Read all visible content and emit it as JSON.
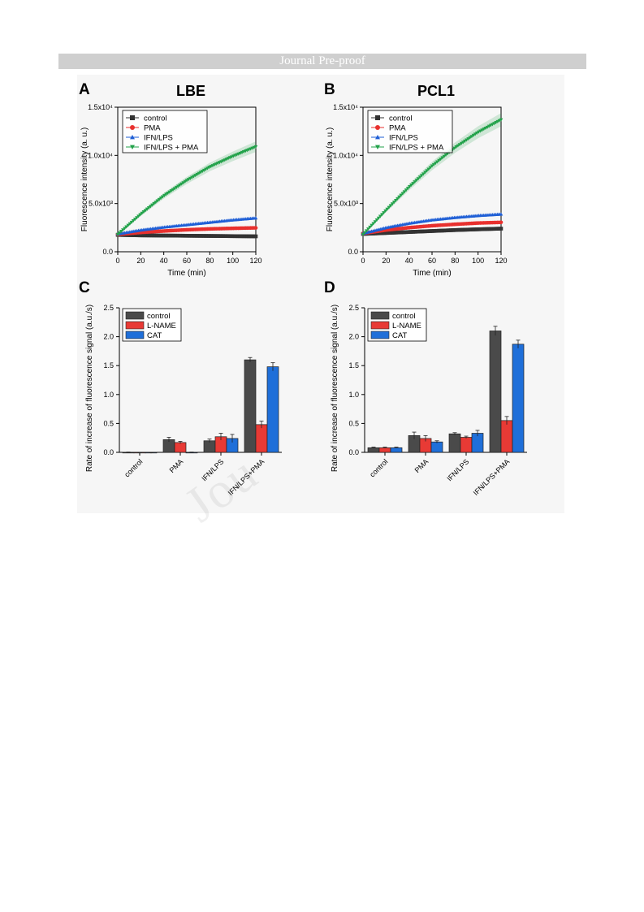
{
  "banner": "Journal Pre-proof",
  "watermark": "Jou",
  "chart_data": [
    {
      "type": "line",
      "panel": "A",
      "title": "LBE",
      "xlabel": "Time (min)",
      "ylabel": "Fluorescence intensity (a. u.)",
      "xlim": [
        0,
        120
      ],
      "ylim": [
        0,
        15000
      ],
      "xticks": [
        0,
        20,
        40,
        60,
        80,
        100,
        120
      ],
      "yticks": [
        0,
        5000,
        10000,
        15000
      ],
      "ytick_labels": [
        "0.0",
        "5.0x10³",
        "1.0x10⁴",
        "1.5x10⁴"
      ],
      "legend_position": "top-left",
      "series": [
        {
          "name": "control",
          "color": "#333333",
          "marker": "square",
          "x": [
            0,
            20,
            40,
            60,
            80,
            100,
            120
          ],
          "y": [
            1750,
            1700,
            1680,
            1660,
            1640,
            1620,
            1600
          ]
        },
        {
          "name": "PMA",
          "color": "#e8302e",
          "marker": "circle",
          "x": [
            0,
            20,
            40,
            60,
            80,
            100,
            120
          ],
          "y": [
            1800,
            2000,
            2150,
            2280,
            2370,
            2430,
            2480
          ]
        },
        {
          "name": "IFN/LPS",
          "color": "#1f5fd6",
          "marker": "triangle-up",
          "x": [
            0,
            20,
            40,
            60,
            80,
            100,
            120
          ],
          "y": [
            1850,
            2250,
            2550,
            2800,
            3050,
            3300,
            3500
          ]
        },
        {
          "name": "IFN/LPS + PMA",
          "color": "#22a24a",
          "marker": "triangle-down",
          "x": [
            0,
            20,
            40,
            60,
            80,
            100,
            120
          ],
          "y": [
            1800,
            3900,
            5800,
            7400,
            8800,
            9900,
            10900
          ]
        }
      ]
    },
    {
      "type": "line",
      "panel": "B",
      "title": "PCL1",
      "xlabel": "Time (min)",
      "ylabel": "Fluorescence intensity (a. u.)",
      "xlim": [
        0,
        120
      ],
      "ylim": [
        0,
        15000
      ],
      "xticks": [
        0,
        20,
        40,
        60,
        80,
        100,
        120
      ],
      "yticks": [
        0,
        5000,
        10000,
        15000
      ],
      "ytick_labels": [
        "0.0",
        "5.0x10³",
        "1.0x10⁴",
        "1.5x10⁴"
      ],
      "legend_position": "top-left",
      "series": [
        {
          "name": "control",
          "color": "#333333",
          "marker": "square",
          "x": [
            0,
            20,
            40,
            60,
            80,
            100,
            120
          ],
          "y": [
            1850,
            1950,
            2050,
            2150,
            2250,
            2330,
            2400
          ]
        },
        {
          "name": "PMA",
          "color": "#e8302e",
          "marker": "circle",
          "x": [
            0,
            20,
            40,
            60,
            80,
            100,
            120
          ],
          "y": [
            1900,
            2250,
            2500,
            2700,
            2850,
            2980,
            3050
          ]
        },
        {
          "name": "IFN/LPS",
          "color": "#1f5fd6",
          "marker": "triangle-up",
          "x": [
            0,
            20,
            40,
            60,
            80,
            100,
            120
          ],
          "y": [
            1900,
            2500,
            2950,
            3300,
            3550,
            3750,
            3900
          ]
        },
        {
          "name": "IFN/LPS + PMA",
          "color": "#22a24a",
          "marker": "triangle-down",
          "x": [
            0,
            20,
            40,
            60,
            80,
            100,
            120
          ],
          "y": [
            1800,
            4300,
            6700,
            8900,
            10800,
            12400,
            13700
          ]
        }
      ]
    },
    {
      "type": "bar",
      "panel": "C",
      "ylabel": "Rate of increase of fluorescence signal (a.u./s)",
      "ylim": [
        0,
        2.5
      ],
      "yticks": [
        0.0,
        0.5,
        1.0,
        1.5,
        2.0,
        2.5
      ],
      "categories": [
        "control",
        "PMA",
        "IFN/LPS",
        "IFN/LPS+PMA"
      ],
      "legend_position": "top-left",
      "series": [
        {
          "name": "control",
          "color": "#4a4a4a",
          "values": [
            0.0,
            0.22,
            0.2,
            1.6
          ],
          "errors": [
            0.005,
            0.04,
            0.03,
            0.04
          ]
        },
        {
          "name": "L-NAME",
          "color": "#e83a35",
          "values": [
            -0.01,
            0.17,
            0.27,
            0.48
          ],
          "errors": [
            0.005,
            0.02,
            0.06,
            0.06
          ]
        },
        {
          "name": "CAT",
          "color": "#1f6fd9",
          "values": [
            -0.01,
            0.0,
            0.24,
            1.48
          ],
          "errors": [
            0.005,
            0.005,
            0.07,
            0.07
          ]
        }
      ]
    },
    {
      "type": "bar",
      "panel": "D",
      "ylabel": "Rate of increase of fluorescence signal (a.u./s)",
      "ylim": [
        0,
        2.5
      ],
      "yticks": [
        0.0,
        0.5,
        1.0,
        1.5,
        2.0,
        2.5
      ],
      "categories": [
        "control",
        "PMA",
        "IFN/LPS",
        "IFN/LPS+PMA"
      ],
      "legend_position": "top-left",
      "series": [
        {
          "name": "control",
          "color": "#4a4a4a",
          "values": [
            0.08,
            0.29,
            0.32,
            2.1
          ],
          "errors": [
            0.01,
            0.06,
            0.02,
            0.08
          ]
        },
        {
          "name": "L-NAME",
          "color": "#e83a35",
          "values": [
            0.08,
            0.24,
            0.26,
            0.55
          ],
          "errors": [
            0.01,
            0.05,
            0.02,
            0.07
          ]
        },
        {
          "name": "CAT",
          "color": "#1f6fd9",
          "values": [
            0.08,
            0.18,
            0.33,
            1.87
          ],
          "errors": [
            0.01,
            0.02,
            0.05,
            0.07
          ]
        }
      ]
    }
  ]
}
